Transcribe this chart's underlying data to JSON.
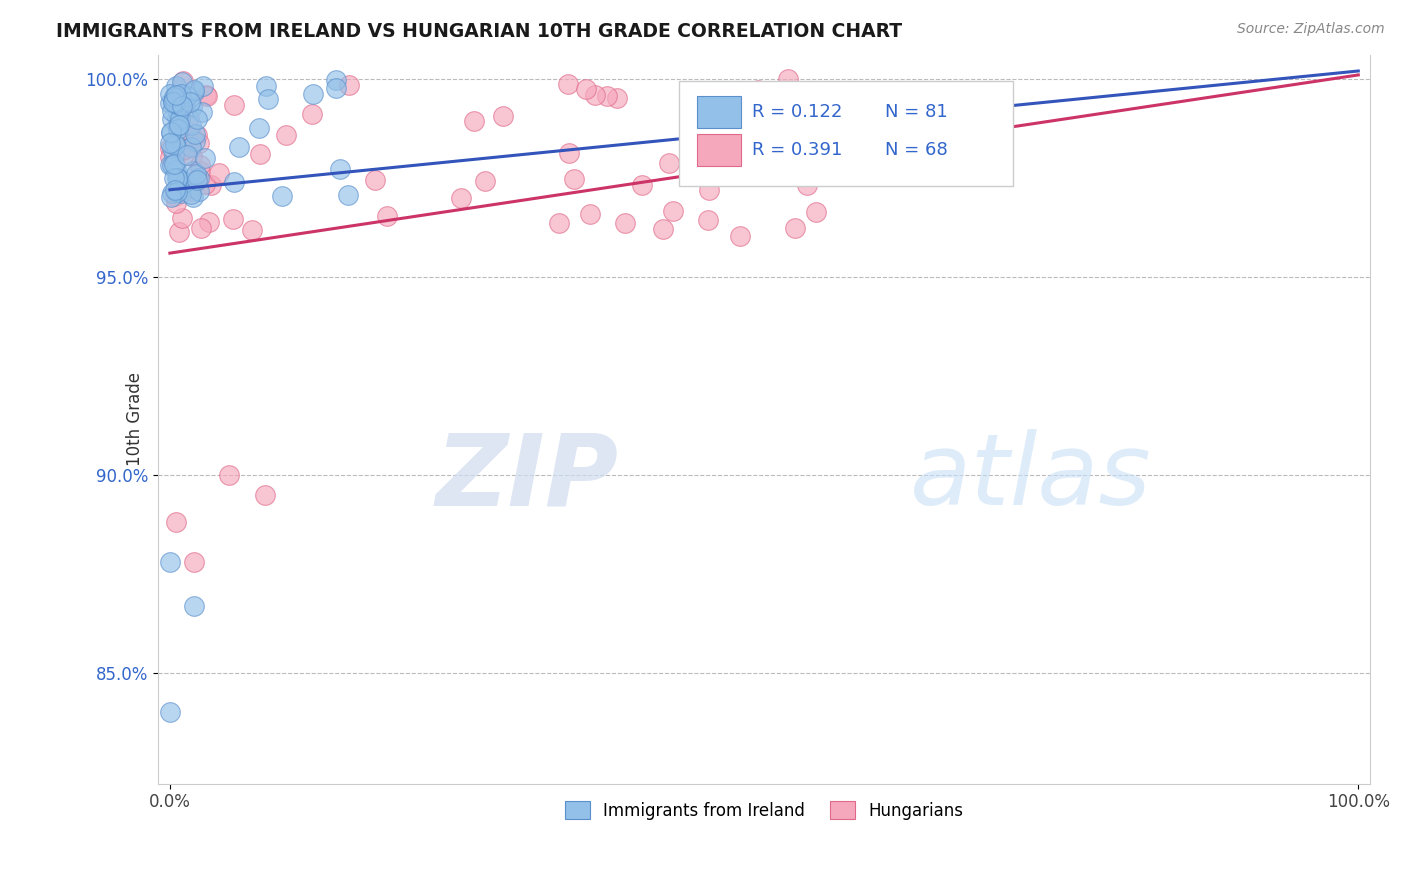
{
  "title": "IMMIGRANTS FROM IRELAND VS HUNGARIAN 10TH GRADE CORRELATION CHART",
  "source": "Source: ZipAtlas.com",
  "ylabel": "10th Grade",
  "y_tick_vals": [
    0.85,
    0.9,
    0.95,
    1.0
  ],
  "legend_blue_R": "R = 0.122",
  "legend_blue_N": "N = 81",
  "legend_pink_R": "R = 0.391",
  "legend_pink_N": "N = 68",
  "legend_label_blue": "Immigrants from Ireland",
  "legend_label_pink": "Hungarians",
  "blue_color": "#92C0E8",
  "pink_color": "#F5A8BC",
  "blue_edge": "#5A8FCC",
  "pink_edge": "#E06888",
  "trend_blue": "#3355BB",
  "trend_pink": "#CC3366",
  "watermark_zip": "ZIP",
  "watermark_atlas": "atlas"
}
